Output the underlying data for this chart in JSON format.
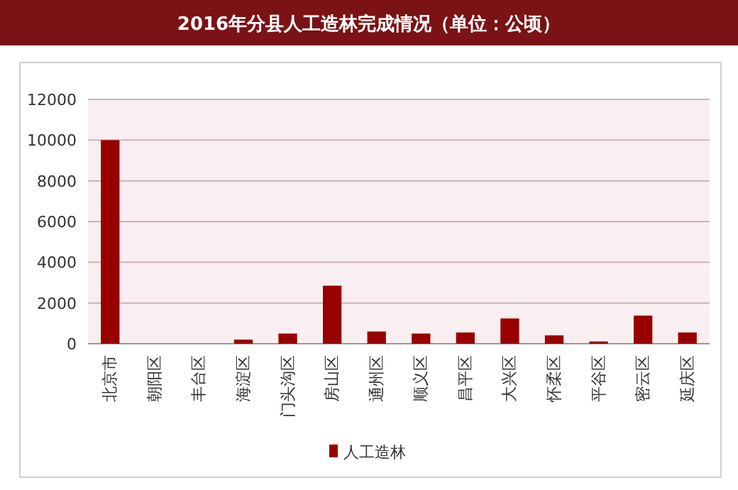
{
  "chart_data": {
    "type": "bar",
    "title": "2016年分县人工造林完成情况（单位：公顷）",
    "categories": [
      "北京市",
      "朝阳区",
      "丰台区",
      "海淀区",
      "门头沟区",
      "房山区",
      "通州区",
      "顺义区",
      "昌平区",
      "大兴区",
      "怀柔区",
      "平谷区",
      "密云区",
      "延庆区"
    ],
    "series": [
      {
        "name": "人工造林",
        "color": "#990000",
        "values": [
          10000,
          0,
          0,
          200,
          500,
          2850,
          600,
          500,
          550,
          1240,
          410,
          110,
          1380,
          550
        ]
      }
    ],
    "ylim": [
      0,
      12000
    ],
    "yticks": [
      0,
      2000,
      4000,
      6000,
      8000,
      10000,
      12000
    ],
    "grid": "y",
    "legend": "bottom"
  }
}
